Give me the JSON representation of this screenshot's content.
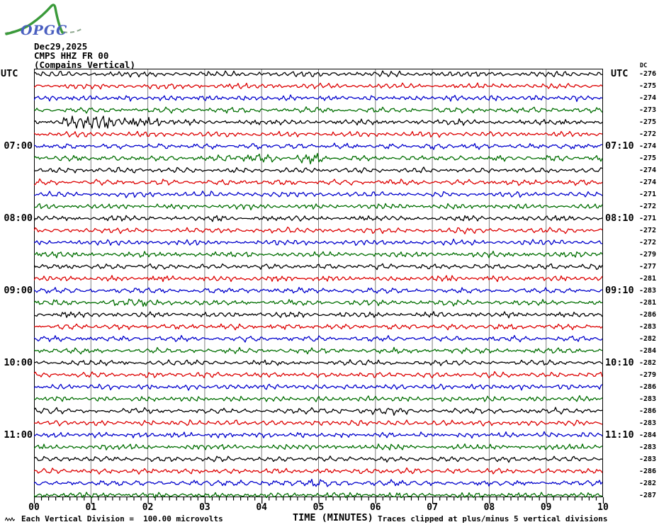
{
  "header": {
    "logo_text": "OPGC",
    "date": "Dec29,2025",
    "station": "CMPS HHZ FR 00",
    "component": "(Compains Vertical)"
  },
  "axes": {
    "left_title": "UTC",
    "right_title": "UTC",
    "dc_title": "DC"
  },
  "footer": {
    "scale_note": "Each Vertical Division =  100.00 microvolts",
    "x_title": "TIME (MINUTES)",
    "clip_note": "Traces clipped at plus/minus 5 vertical divisions"
  },
  "chart_data": {
    "type": "line",
    "subtype": "helicorder-webicorder",
    "title": "CMPS HHZ FR 00 (Compains Vertical) Dec29,2025",
    "x_label": "TIME (MINUTES)",
    "x_range_minutes": [
      0,
      10
    ],
    "x_tick_labels": [
      "00",
      "01",
      "02",
      "03",
      "04",
      "05",
      "06",
      "07",
      "08",
      "09",
      "10"
    ],
    "minor_ticks_per_minute": 8,
    "rows": 36,
    "row_duration_minutes": 10,
    "first_row_start_utc": "06:00",
    "trace_color_cycle": [
      "#000000",
      "#dd0000",
      "#0000cc",
      "#006e00"
    ],
    "grid_color": "#808080",
    "clip_divisions": 5,
    "microvolts_per_division": 100.0,
    "left_time_labels": [
      {
        "row": 7,
        "label": "07:00"
      },
      {
        "row": 13,
        "label": "08:00"
      },
      {
        "row": 19,
        "label": "09:00"
      },
      {
        "row": 25,
        "label": "10:00"
      },
      {
        "row": 31,
        "label": "11:00"
      }
    ],
    "right_time_labels": [
      {
        "row": 7,
        "label": "07:10"
      },
      {
        "row": 13,
        "label": "08:10"
      },
      {
        "row": 19,
        "label": "09:10"
      },
      {
        "row": 25,
        "label": "10:10"
      },
      {
        "row": 31,
        "label": "11:10"
      }
    ],
    "dc_offsets": [
      -276,
      -275,
      -274,
      -273,
      -275,
      -272,
      -274,
      -275,
      -274,
      -274,
      -271,
      -272,
      -271,
      -272,
      -272,
      -279,
      -277,
      -281,
      -283,
      -281,
      -286,
      -283,
      -282,
      -284,
      -282,
      -279,
      -286,
      -283,
      -286,
      -283,
      -284,
      -283,
      -283,
      -286,
      -282,
      -287
    ],
    "bursts": [
      {
        "row": 5,
        "start_min": 0.55,
        "end_min": 2.15,
        "amp": 2.6
      },
      {
        "row": 8,
        "start_min": 3.3,
        "end_min": 5.05,
        "amp": 1.8
      },
      {
        "row": 20,
        "start_min": 1.2,
        "end_min": 2.4,
        "amp": 1.45
      },
      {
        "row": 29,
        "start_min": 5.3,
        "end_min": 6.6,
        "amp": 1.3
      },
      {
        "row": 35,
        "start_min": 3.7,
        "end_min": 6.3,
        "amp": 1.35
      }
    ],
    "noise_seed": 20251229
  }
}
